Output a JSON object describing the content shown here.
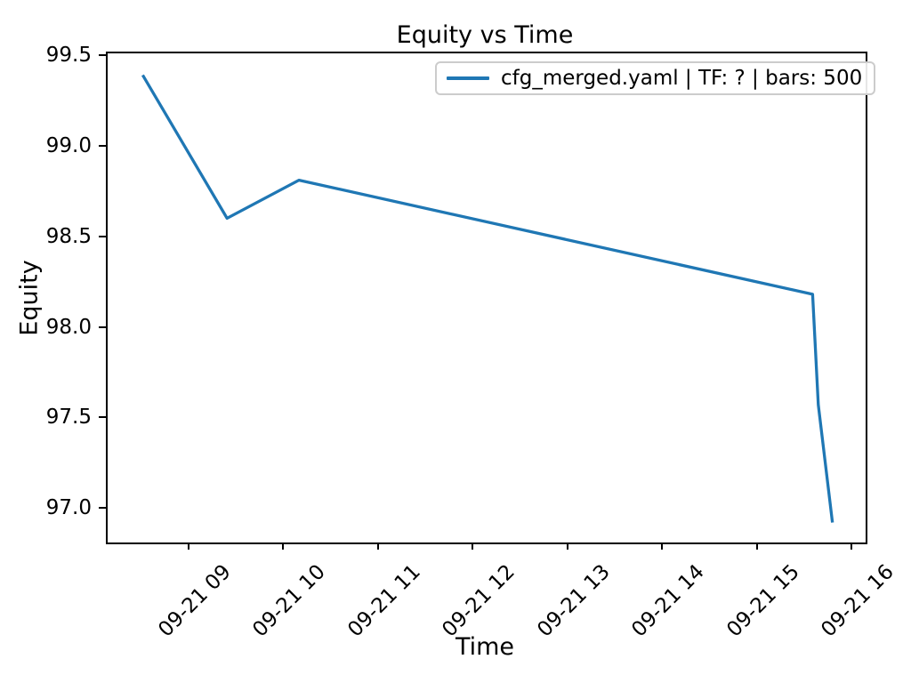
{
  "chart_data": {
    "type": "line",
    "title": "Equity vs Time",
    "xlabel": "Time",
    "ylabel": "Equity",
    "grid": false,
    "legend": {
      "position": "upper right",
      "entries": [
        "cfg_merged.yaml | TF: ? | bars: 500"
      ]
    },
    "x_ticks": [
      {
        "hour": 9,
        "label": "09-21 09"
      },
      {
        "hour": 10,
        "label": "09-21 10"
      },
      {
        "hour": 11,
        "label": "09-21 11"
      },
      {
        "hour": 12,
        "label": "09-21 12"
      },
      {
        "hour": 13,
        "label": "09-21 13"
      },
      {
        "hour": 14,
        "label": "09-21 14"
      },
      {
        "hour": 15,
        "label": "09-21 15"
      },
      {
        "hour": 16,
        "label": "09-21 16"
      }
    ],
    "y_ticks": [
      {
        "value": 99.5,
        "label": "99.5"
      },
      {
        "value": 99.0,
        "label": "99.0"
      },
      {
        "value": 98.5,
        "label": "98.5"
      },
      {
        "value": 98.0,
        "label": "98.0"
      },
      {
        "value": 97.5,
        "label": "97.5"
      },
      {
        "value": 97.0,
        "label": "97.0"
      }
    ],
    "xlim_hours": [
      8.13,
      16.13
    ],
    "ylim": [
      96.82,
      99.52
    ],
    "series": [
      {
        "name": "cfg_merged.yaml | TF: ? | bars: 500",
        "color": "#1f77b4",
        "line_width": 3.3,
        "x_hours": [
          8.5,
          9.39,
          10.15,
          15.57,
          15.63,
          15.78
        ],
        "x_time_approx": [
          "09-21 08:30",
          "09-21 09:23",
          "09-21 10:09",
          "09-21 15:34",
          "09-21 15:38",
          "09-21 15:47"
        ],
        "equity": [
          99.4,
          98.61,
          98.82,
          98.19,
          97.58,
          96.93
        ]
      }
    ]
  },
  "colors": {
    "line": "#1f77b4",
    "axis": "#000000",
    "text": "#000000",
    "legend_border": "#cccccc",
    "background": "#ffffff"
  }
}
